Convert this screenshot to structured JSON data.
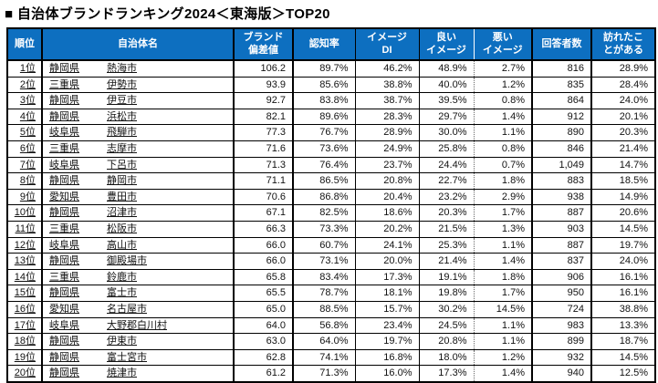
{
  "title": "■ 自治体ブランドランキング2024＜東海版＞TOP20",
  "accent_color": "#0d6fc0",
  "chart_data": {
    "type": "table",
    "title": "自治体ブランドランキング2024＜東海版＞TOP20",
    "columns": [
      "順位",
      "自治体名",
      "ブランド\n偏差値",
      "認知率",
      "イメージ\nDI",
      "良い\nイメージ",
      "悪い\nイメージ",
      "回答者数",
      "訪れたこ\nとがある"
    ],
    "rows": [
      {
        "rank": "1位",
        "pref": "静岡県",
        "city": "熱海市",
        "brand": "106.2",
        "recognition": "89.7%",
        "di": "46.2%",
        "good": "48.9%",
        "bad": "2.7%",
        "respondents": "816",
        "visited": "28.9%"
      },
      {
        "rank": "2位",
        "pref": "三重県",
        "city": "伊勢市",
        "brand": "93.9",
        "recognition": "85.6%",
        "di": "38.8%",
        "good": "40.0%",
        "bad": "1.2%",
        "respondents": "835",
        "visited": "28.4%"
      },
      {
        "rank": "3位",
        "pref": "静岡県",
        "city": "伊豆市",
        "brand": "92.7",
        "recognition": "83.8%",
        "di": "38.7%",
        "good": "39.5%",
        "bad": "0.8%",
        "respondents": "864",
        "visited": "24.0%"
      },
      {
        "rank": "4位",
        "pref": "静岡県",
        "city": "浜松市",
        "brand": "82.1",
        "recognition": "89.6%",
        "di": "28.3%",
        "good": "29.7%",
        "bad": "1.4%",
        "respondents": "912",
        "visited": "20.1%"
      },
      {
        "rank": "5位",
        "pref": "岐阜県",
        "city": "飛騨市",
        "brand": "77.3",
        "recognition": "76.7%",
        "di": "28.9%",
        "good": "30.0%",
        "bad": "1.1%",
        "respondents": "890",
        "visited": "20.3%"
      },
      {
        "rank": "6位",
        "pref": "三重県",
        "city": "志摩市",
        "brand": "71.6",
        "recognition": "73.6%",
        "di": "24.9%",
        "good": "25.8%",
        "bad": "0.8%",
        "respondents": "846",
        "visited": "21.4%"
      },
      {
        "rank": "7位",
        "pref": "岐阜県",
        "city": "下呂市",
        "brand": "71.3",
        "recognition": "76.4%",
        "di": "23.7%",
        "good": "24.4%",
        "bad": "0.7%",
        "respondents": "1,049",
        "visited": "14.7%"
      },
      {
        "rank": "8位",
        "pref": "静岡県",
        "city": "静岡市",
        "brand": "71.1",
        "recognition": "86.5%",
        "di": "20.8%",
        "good": "22.7%",
        "bad": "1.8%",
        "respondents": "883",
        "visited": "18.5%"
      },
      {
        "rank": "9位",
        "pref": "愛知県",
        "city": "豊田市",
        "brand": "70.6",
        "recognition": "86.8%",
        "di": "20.4%",
        "good": "23.2%",
        "bad": "2.9%",
        "respondents": "938",
        "visited": "14.9%"
      },
      {
        "rank": "10位",
        "pref": "静岡県",
        "city": "沼津市",
        "brand": "67.1",
        "recognition": "82.5%",
        "di": "18.6%",
        "good": "20.3%",
        "bad": "1.7%",
        "respondents": "887",
        "visited": "20.6%"
      },
      {
        "rank": "11位",
        "pref": "三重県",
        "city": "松阪市",
        "brand": "66.3",
        "recognition": "73.3%",
        "di": "20.2%",
        "good": "21.5%",
        "bad": "1.3%",
        "respondents": "903",
        "visited": "14.5%"
      },
      {
        "rank": "12位",
        "pref": "岐阜県",
        "city": "高山市",
        "brand": "66.0",
        "recognition": "60.7%",
        "di": "24.1%",
        "good": "25.3%",
        "bad": "1.1%",
        "respondents": "887",
        "visited": "19.7%"
      },
      {
        "rank": "13位",
        "pref": "静岡県",
        "city": "御殿場市",
        "brand": "66.0",
        "recognition": "73.1%",
        "di": "20.0%",
        "good": "21.4%",
        "bad": "1.4%",
        "respondents": "837",
        "visited": "24.0%"
      },
      {
        "rank": "14位",
        "pref": "三重県",
        "city": "鈴鹿市",
        "brand": "65.8",
        "recognition": "83.4%",
        "di": "17.3%",
        "good": "19.1%",
        "bad": "1.8%",
        "respondents": "906",
        "visited": "16.1%"
      },
      {
        "rank": "15位",
        "pref": "静岡県",
        "city": "富士市",
        "brand": "65.5",
        "recognition": "78.7%",
        "di": "18.1%",
        "good": "19.8%",
        "bad": "1.7%",
        "respondents": "950",
        "visited": "16.1%"
      },
      {
        "rank": "16位",
        "pref": "愛知県",
        "city": "名古屋市",
        "brand": "65.0",
        "recognition": "88.5%",
        "di": "15.7%",
        "good": "30.2%",
        "bad": "14.5%",
        "respondents": "724",
        "visited": "38.8%"
      },
      {
        "rank": "17位",
        "pref": "岐阜県",
        "city": "大野郡白川村",
        "brand": "64.0",
        "recognition": "56.8%",
        "di": "23.4%",
        "good": "24.5%",
        "bad": "1.1%",
        "respondents": "983",
        "visited": "13.3%"
      },
      {
        "rank": "18位",
        "pref": "静岡県",
        "city": "伊東市",
        "brand": "63.0",
        "recognition": "64.0%",
        "di": "19.7%",
        "good": "20.8%",
        "bad": "1.1%",
        "respondents": "899",
        "visited": "18.7%"
      },
      {
        "rank": "19位",
        "pref": "静岡県",
        "city": "富士宮市",
        "brand": "62.8",
        "recognition": "74.1%",
        "di": "16.8%",
        "good": "18.0%",
        "bad": "1.2%",
        "respondents": "932",
        "visited": "14.5%"
      },
      {
        "rank": "20位",
        "pref": "静岡県",
        "city": "焼津市",
        "brand": "61.2",
        "recognition": "71.3%",
        "di": "16.0%",
        "good": "17.3%",
        "bad": "1.4%",
        "respondents": "940",
        "visited": "12.5%"
      }
    ]
  }
}
